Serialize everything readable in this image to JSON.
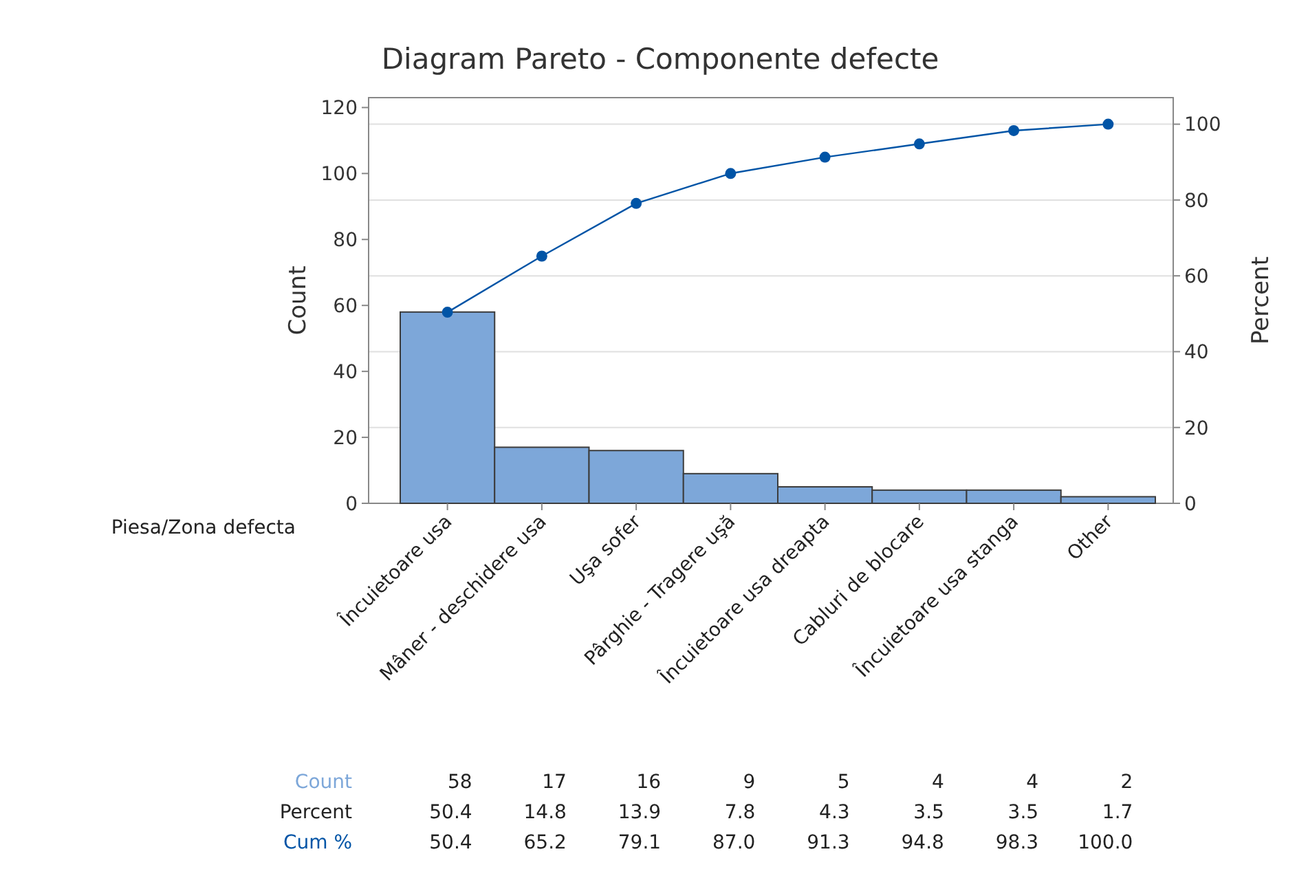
{
  "chart_data": {
    "type": "bar",
    "title": "Diagram Pareto - Componente defecte",
    "xlabel": "Piesa/Zona defecta",
    "ylabel": "Count",
    "y2label": "Percent",
    "categories": [
      "Încuietoare usa",
      "Mâner - deschidere usa",
      "Uşa sofer",
      "Pârghie - Tragere uşă",
      "Încuietoare usa dreapta",
      "Cabluri de blocare",
      "Încuietoare usa stanga",
      "Other"
    ],
    "series": [
      {
        "name": "Count",
        "color": "#7da7d9",
        "values": [
          58,
          17,
          16,
          9,
          5,
          4,
          4,
          2
        ],
        "value_labels": [
          "58",
          "17",
          "16",
          "9",
          "5",
          "4",
          "4",
          "2"
        ]
      },
      {
        "name": "Cum %",
        "type": "line",
        "axis": "y2",
        "color": "#0054a6",
        "values": [
          50.4,
          65.2,
          79.1,
          87.0,
          91.3,
          94.8,
          98.3,
          100.0
        ],
        "value_labels": [
          "50.4",
          "65.2",
          "79.1",
          "87.0",
          "91.3",
          "94.8",
          "98.3",
          "100.0"
        ]
      }
    ],
    "ylim": [
      0,
      123
    ],
    "yticks": [
      0,
      20,
      40,
      60,
      80,
      100,
      120
    ],
    "y2lim": [
      0,
      107
    ],
    "y2ticks": [
      0,
      20,
      40,
      60,
      80,
      100
    ],
    "annotations": [
      "Percent",
      "50.4",
      "14.8",
      "13.9",
      "7.8",
      "4.3",
      "3.5",
      "3.5",
      "1.7"
    ],
    "grid": "y2",
    "marker": "circle",
    "line_style": "solid"
  }
}
